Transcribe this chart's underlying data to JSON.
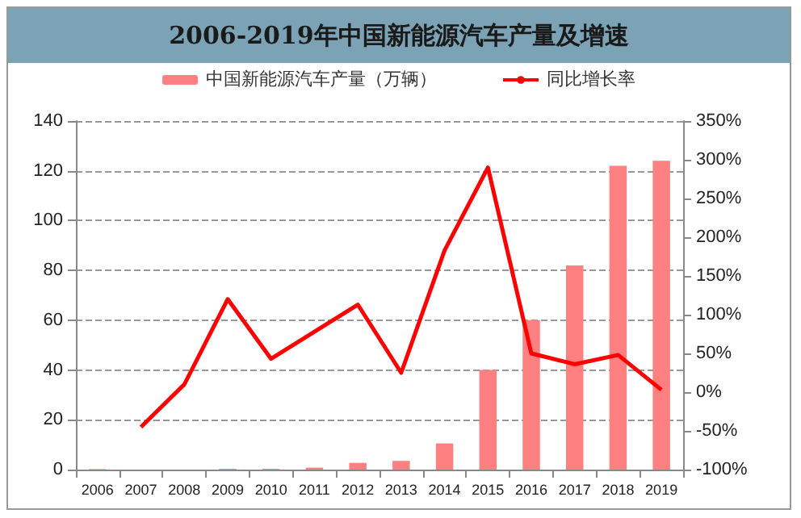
{
  "chart_data": {
    "type": "bar",
    "title": "2006-2019年中国新能源汽车产量及增速",
    "categories": [
      "2006",
      "2007",
      "2008",
      "2009",
      "2010",
      "2011",
      "2012",
      "2013",
      "2014",
      "2015",
      "2016",
      "2017",
      "2018",
      "2019"
    ],
    "series": [
      {
        "name": "中国新能源汽车产量（万辆）",
        "color": "#ff8080",
        "values": [
          0.2,
          null,
          null,
          0.3,
          0.3,
          0.8,
          2.7,
          3.5,
          10.5,
          40,
          60,
          82,
          122,
          124
        ]
      },
      {
        "name": "同比增长率",
        "type": "line",
        "axis": "y2",
        "color": "#ff0000",
        "values": [
          null,
          -45,
          10,
          120,
          43,
          78,
          113,
          25,
          183,
          290,
          50,
          36,
          48,
          3
        ]
      }
    ],
    "ylim": [
      0,
      140
    ],
    "yticks": [
      0,
      20,
      40,
      60,
      80,
      100,
      120,
      140
    ],
    "y2lim": [
      -100,
      350
    ],
    "y2ticks": [
      {
        "value": -100,
        "label": "-100%"
      },
      {
        "value": -50,
        "label": "-50%"
      },
      {
        "value": 0,
        "label": "0%"
      },
      {
        "value": 50,
        "label": "50%"
      },
      {
        "value": 100,
        "label": "100%"
      },
      {
        "value": 150,
        "label": "150%"
      },
      {
        "value": 200,
        "label": "200%"
      },
      {
        "value": 250,
        "label": "250%"
      },
      {
        "value": 300,
        "label": "300%"
      },
      {
        "value": 350,
        "label": "350%"
      }
    ],
    "grid": "y",
    "legend": "top",
    "marker": "none",
    "line_style": "solid"
  }
}
